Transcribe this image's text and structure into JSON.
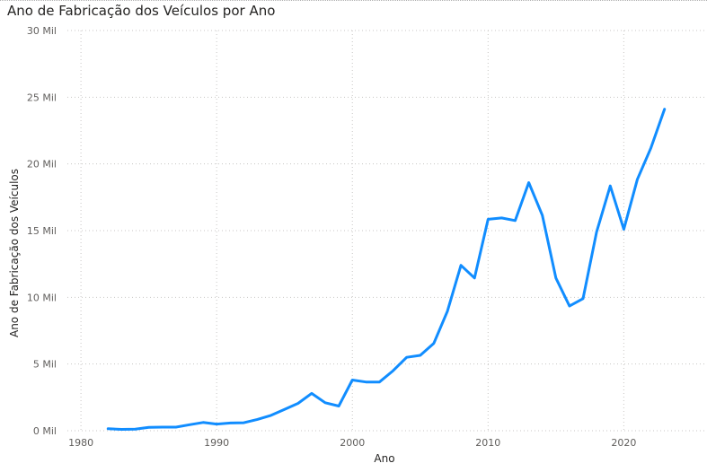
{
  "chart": {
    "title": "Ano de Fabricação dos Veículos por Ano"
  },
  "chart_data": {
    "type": "line",
    "title": "Ano de Fabricação dos Veículos por Ano",
    "xlabel": "Ano",
    "ylabel": "Ano de Fabricação dos Veículos",
    "xlim": [
      1979,
      2026
    ],
    "ylim": [
      0,
      30000
    ],
    "x_ticks": [
      1980,
      1990,
      2000,
      2010,
      2020
    ],
    "x_tick_labels": [
      "1980",
      "1990",
      "2000",
      "2010",
      "2020"
    ],
    "y_ticks": [
      0,
      5000,
      10000,
      15000,
      20000,
      25000,
      30000
    ],
    "y_tick_labels": [
      "0 Mil",
      "5 Mil",
      "10 Mil",
      "15 Mil",
      "20 Mil",
      "25 Mil",
      "30 Mil"
    ],
    "grid": true,
    "line_color": "#118DFF",
    "series": [
      {
        "x": [
          1982,
          1983,
          1984,
          1985,
          1986,
          1987,
          1988,
          1989,
          1990,
          1991,
          1992,
          1993,
          1994,
          1995,
          1996,
          1997,
          1998,
          1999,
          2000,
          2001,
          2002,
          2003,
          2004,
          2005,
          2006,
          2007,
          2008,
          2009,
          2010,
          2011,
          2012,
          2013,
          2014,
          2015,
          2016,
          2017,
          2018,
          2019,
          2020,
          2021,
          2022,
          2023
        ],
        "values": [
          150,
          100,
          120,
          250,
          270,
          270,
          450,
          620,
          500,
          580,
          600,
          850,
          1150,
          1600,
          2050,
          2800,
          2100,
          1850,
          3800,
          3650,
          3650,
          4500,
          5500,
          5650,
          6550,
          8950,
          12400,
          11450,
          15850,
          15950,
          15750,
          18600,
          16150,
          11450,
          9350,
          9900,
          14900,
          18350,
          15100,
          18850,
          21200,
          24100
        ]
      }
    ]
  }
}
